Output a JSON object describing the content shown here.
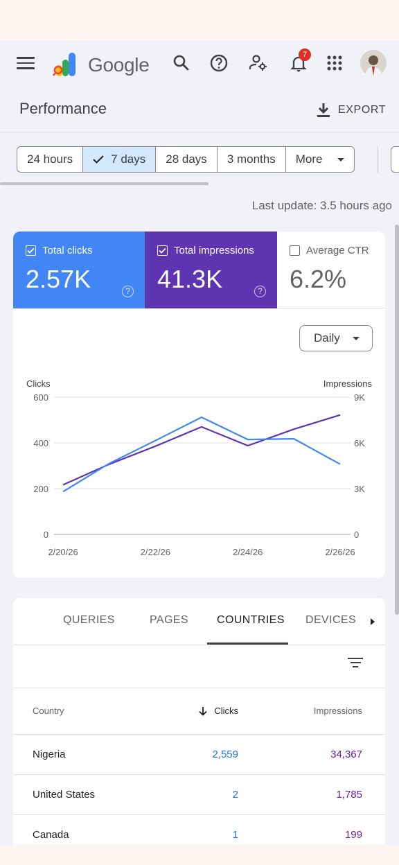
{
  "app": {
    "brand": "Google",
    "notifications_count": "7",
    "page_title": "Performance",
    "export_label": "EXPORT"
  },
  "date_range": {
    "chips": [
      "24 hours",
      "7 days",
      "28 days",
      "3 months",
      "More"
    ],
    "selected": "7 days"
  },
  "last_update": "Last update: 3.5 hours ago",
  "metrics": {
    "clicks": {
      "label": "Total clicks",
      "value": "2.57K",
      "checked": true,
      "color": "#4285f4"
    },
    "impressions": {
      "label": "Total impressions",
      "value": "41.3K",
      "checked": true,
      "color": "#5e35b1"
    },
    "ctr": {
      "label": "Average CTR",
      "value": "6.2%",
      "checked": false
    }
  },
  "granularity": "Daily",
  "chart_data": {
    "type": "line",
    "x": [
      "2/20/26",
      "2/21/26",
      "2/22/26",
      "2/23/26",
      "2/24/26",
      "2/25/26",
      "2/26/26"
    ],
    "x_tick_labels": [
      "2/20/26",
      "2/22/26",
      "2/24/26",
      "2/26/26"
    ],
    "series": [
      {
        "name": "Clicks",
        "axis": "left",
        "color": "#4285f4",
        "values": [
          187,
          310,
          410,
          512,
          415,
          418,
          307
        ]
      },
      {
        "name": "Impressions",
        "axis": "right",
        "color": "#5e35b1",
        "values": [
          3250,
          4600,
          5780,
          7050,
          5820,
          6900,
          7830
        ]
      }
    ],
    "ylabel_left": "Clicks",
    "ylabel_right": "Impressions",
    "ylim_left": [
      0,
      600
    ],
    "ylim_right": [
      0,
      9000
    ],
    "yticks_left": [
      "0",
      "200",
      "400",
      "600"
    ],
    "yticks_right": [
      "0",
      "3K",
      "6K",
      "9K"
    ],
    "grid": true
  },
  "table": {
    "tabs": [
      "QUERIES",
      "PAGES",
      "COUNTRIES",
      "DEVICES"
    ],
    "active_tab": "COUNTRIES",
    "columns": [
      "Country",
      "Clicks",
      "Impressions"
    ],
    "rows": [
      {
        "country": "Nigeria",
        "clicks": "2,559",
        "impressions": "34,367"
      },
      {
        "country": "United States",
        "clicks": "2",
        "impressions": "1,785"
      },
      {
        "country": "Canada",
        "clicks": "1",
        "impressions": "199"
      }
    ]
  }
}
